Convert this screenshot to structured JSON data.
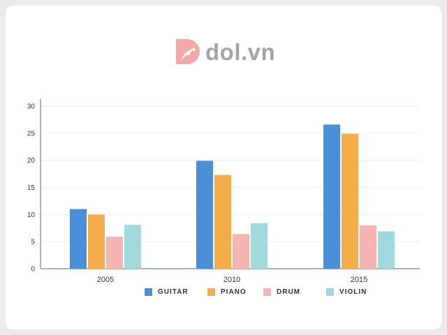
{
  "brand": {
    "name": "dol.vn",
    "logo_color": "#f3a9a6",
    "text_color": "#a4a4a4"
  },
  "chart_data": {
    "type": "bar",
    "title": "",
    "xlabel": "",
    "ylabel": "",
    "categories": [
      "2005",
      "2010",
      "2015"
    ],
    "ylim": [
      0,
      30
    ],
    "yticks": [
      0,
      5,
      10,
      15,
      20,
      25,
      30
    ],
    "grid": true,
    "legend_position": "bottom",
    "series": [
      {
        "name": "GUITAR",
        "color": "#4a90d9",
        "values": [
          11,
          19.9,
          26.6
        ]
      },
      {
        "name": "PIANO",
        "color": "#f5ad4c",
        "values": [
          10,
          17.3,
          24.9
        ]
      },
      {
        "name": "DRUM",
        "color": "#f5b3b1",
        "values": [
          5.9,
          6.4,
          8
        ]
      },
      {
        "name": "VIOLIN",
        "color": "#a2d9dc",
        "values": [
          8.1,
          8.4,
          6.9
        ]
      }
    ]
  }
}
